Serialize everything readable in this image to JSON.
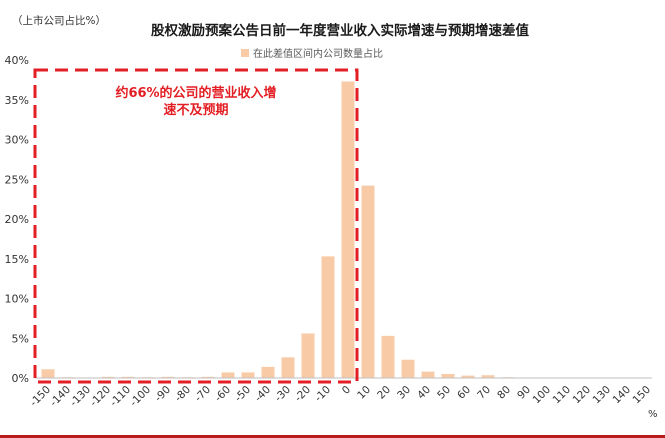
{
  "chart_data": {
    "type": "bar",
    "title": "股权激励预案公告日前一年度营业收入实际增速与预期增速差值",
    "unit_note": "（上市公司占比%）",
    "xlabel": "%",
    "ylabel": "",
    "legend": {
      "entries": [
        "在此差值区间内公司数量占比"
      ],
      "placement": "top-center"
    },
    "categories": [
      "-150",
      "-140",
      "-130",
      "-120",
      "-110",
      "-100",
      "-90",
      "-80",
      "-70",
      "-60",
      "-50",
      "-40",
      "-30",
      "-20",
      "-10",
      "0",
      "10",
      "20",
      "30",
      "40",
      "50",
      "60",
      "70",
      "80",
      "90",
      "100",
      "110",
      "120",
      "130",
      "140",
      "150"
    ],
    "series": [
      {
        "name": "在此差值区间内公司数量占比",
        "values": [
          1.1,
          0.1,
          0.05,
          0.15,
          0.15,
          0.1,
          0.15,
          0.1,
          0.15,
          0.7,
          0.7,
          1.4,
          2.6,
          5.6,
          15.3,
          37.3,
          24.2,
          5.3,
          2.3,
          0.8,
          0.5,
          0.3,
          0.35,
          0.1,
          0.05,
          0.05,
          0.05,
          0.05,
          0.05,
          0.05,
          0.0
        ]
      }
    ],
    "ylim": [
      0,
      40
    ],
    "yticks": [
      "0%",
      "5%",
      "10%",
      "15%",
      "20%",
      "25%",
      "30%",
      "35%",
      "40%"
    ],
    "grid": false,
    "annotation": {
      "text_line1": "约66%的公司的营业收入增",
      "text_line2": "速不及预期"
    },
    "colors": {
      "bar": "#f8cba6",
      "annotation": "#e31e24",
      "axis": "#595959",
      "bottom_rule": "#b71c1c"
    }
  }
}
